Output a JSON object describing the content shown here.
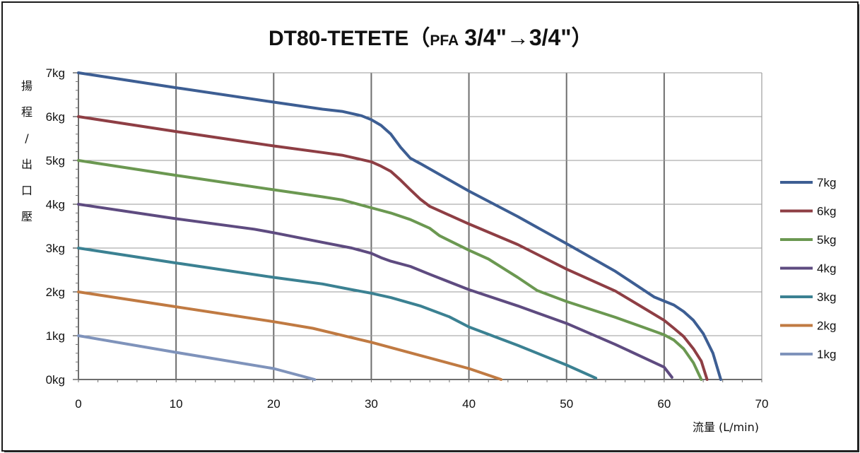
{
  "chart_data": {
    "type": "line",
    "title": {
      "main": "DT80-TETETE",
      "open_paren": "（",
      "pfa": "PFA",
      "size_from": "3/4\"",
      "arrow": "→",
      "size_to": "3/4\"",
      "close_paren": "）"
    },
    "xlabel": "流量 (L/min)",
    "ylabel": [
      "揚",
      "程",
      "/",
      "出",
      "口",
      "壓"
    ],
    "xlim": [
      0,
      70
    ],
    "ylim": [
      0,
      7
    ],
    "x_ticks": [
      "0",
      "10",
      "20",
      "30",
      "40",
      "50",
      "60",
      "70"
    ],
    "y_ticks": [
      "0kg",
      "1kg",
      "2kg",
      "3kg",
      "4kg",
      "5kg",
      "6kg",
      "7kg"
    ],
    "grid": {
      "x_major": true,
      "y_major": true
    },
    "legend_position": "right",
    "series": [
      {
        "name": "7kg",
        "color": "#3d5e93",
        "points": [
          [
            0,
            7
          ],
          [
            10,
            6.66
          ],
          [
            20,
            6.33
          ],
          [
            25,
            6.17
          ],
          [
            27,
            6.12
          ],
          [
            29,
            6.02
          ],
          [
            30,
            5.93
          ],
          [
            31,
            5.8
          ],
          [
            32,
            5.6
          ],
          [
            33,
            5.3
          ],
          [
            34,
            5.05
          ],
          [
            35,
            4.93
          ],
          [
            40,
            4.3
          ],
          [
            45,
            3.72
          ],
          [
            50,
            3.1
          ],
          [
            55,
            2.47
          ],
          [
            59,
            1.88
          ],
          [
            61,
            1.7
          ],
          [
            62,
            1.55
          ],
          [
            63,
            1.35
          ],
          [
            64,
            1.05
          ],
          [
            65,
            0.6
          ],
          [
            65.8,
            0
          ]
        ]
      },
      {
        "name": "6kg",
        "color": "#8e3e44",
        "points": [
          [
            0,
            6
          ],
          [
            10,
            5.66
          ],
          [
            20,
            5.33
          ],
          [
            25,
            5.18
          ],
          [
            27,
            5.12
          ],
          [
            28,
            5.07
          ],
          [
            30,
            4.97
          ],
          [
            31,
            4.87
          ],
          [
            32,
            4.75
          ],
          [
            33,
            4.55
          ],
          [
            34,
            4.33
          ],
          [
            35,
            4.12
          ],
          [
            36,
            3.95
          ],
          [
            40,
            3.55
          ],
          [
            45,
            3.08
          ],
          [
            50,
            2.52
          ],
          [
            55,
            2.02
          ],
          [
            58,
            1.62
          ],
          [
            60,
            1.35
          ],
          [
            61,
            1.17
          ],
          [
            62,
            0.98
          ],
          [
            63,
            0.7
          ],
          [
            63.8,
            0.42
          ],
          [
            64.4,
            0
          ]
        ]
      },
      {
        "name": "5kg",
        "color": "#6b9851",
        "points": [
          [
            0,
            5
          ],
          [
            10,
            4.66
          ],
          [
            20,
            4.33
          ],
          [
            25,
            4.17
          ],
          [
            27,
            4.1
          ],
          [
            30,
            3.92
          ],
          [
            32,
            3.8
          ],
          [
            34,
            3.65
          ],
          [
            36,
            3.45
          ],
          [
            37,
            3.28
          ],
          [
            40,
            2.95
          ],
          [
            42,
            2.75
          ],
          [
            45,
            2.33
          ],
          [
            47,
            2.03
          ],
          [
            50,
            1.78
          ],
          [
            55,
            1.42
          ],
          [
            58,
            1.18
          ],
          [
            60,
            1.02
          ],
          [
            61,
            0.9
          ],
          [
            62,
            0.7
          ],
          [
            63,
            0.38
          ],
          [
            63.8,
            0
          ]
        ]
      },
      {
        "name": "4kg",
        "color": "#5e4b80",
        "points": [
          [
            0,
            4
          ],
          [
            10,
            3.67
          ],
          [
            18,
            3.43
          ],
          [
            20,
            3.35
          ],
          [
            25,
            3.13
          ],
          [
            28,
            3.0
          ],
          [
            30,
            2.88
          ],
          [
            31,
            2.78
          ],
          [
            32,
            2.7
          ],
          [
            34,
            2.58
          ],
          [
            36,
            2.4
          ],
          [
            40,
            2.05
          ],
          [
            45,
            1.68
          ],
          [
            50,
            1.28
          ],
          [
            55,
            0.8
          ],
          [
            60,
            0.28
          ],
          [
            60.8,
            0.05
          ]
        ]
      },
      {
        "name": "3kg",
        "color": "#3b8192",
        "points": [
          [
            0,
            3
          ],
          [
            10,
            2.66
          ],
          [
            20,
            2.33
          ],
          [
            25,
            2.18
          ],
          [
            28,
            2.05
          ],
          [
            30,
            1.97
          ],
          [
            32,
            1.87
          ],
          [
            35,
            1.68
          ],
          [
            38,
            1.43
          ],
          [
            40,
            1.2
          ],
          [
            45,
            0.78
          ],
          [
            50,
            0.33
          ],
          [
            53,
            0.03
          ]
        ]
      },
      {
        "name": "2kg",
        "color": "#c07a42",
        "points": [
          [
            0,
            2
          ],
          [
            10,
            1.66
          ],
          [
            20,
            1.32
          ],
          [
            24,
            1.17
          ],
          [
            30,
            0.85
          ],
          [
            35,
            0.55
          ],
          [
            40,
            0.25
          ],
          [
            43.3,
            0
          ]
        ]
      },
      {
        "name": "1kg",
        "color": "#7f93bb",
        "points": [
          [
            0,
            1
          ],
          [
            10,
            0.62
          ],
          [
            20,
            0.25
          ],
          [
            24.2,
            0
          ]
        ]
      }
    ]
  }
}
